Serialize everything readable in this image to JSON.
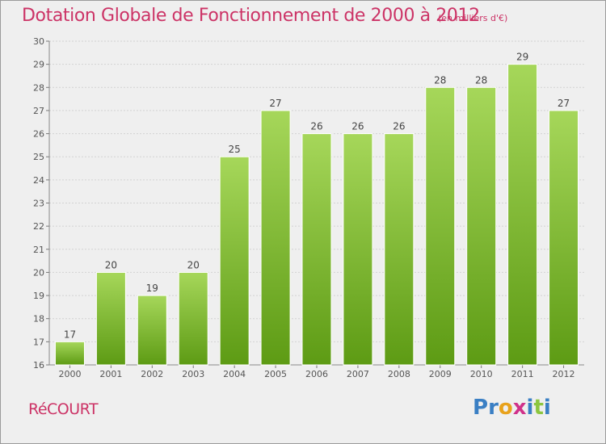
{
  "header": {
    "title": "Dotation Globale de Fonctionnement de 2000 à 2012",
    "unit": "(en milliers d'€)"
  },
  "footer": {
    "commune": "RéCOURT",
    "brand_letters": [
      {
        "char": "P",
        "color": "#3a7fc4"
      },
      {
        "char": "r",
        "color": "#3a7fc4"
      },
      {
        "char": "o",
        "color": "#e8a21c"
      },
      {
        "char": "x",
        "color": "#d0318a"
      },
      {
        "char": "i",
        "color": "#3a7fc4"
      },
      {
        "char": "t",
        "color": "#8cc63f"
      },
      {
        "char": "i",
        "color": "#3a7fc4"
      }
    ]
  },
  "colors": {
    "bar_light": "#a6d75a",
    "bar_dark": "#5d9b14",
    "accent": "#cc3366"
  },
  "chart_data": {
    "type": "bar",
    "title": "Dotation Globale de Fonctionnement de 2000 à 2012",
    "subtitle": "(en milliers d'€)",
    "categories": [
      "2000",
      "2001",
      "2002",
      "2003",
      "2004",
      "2005",
      "2006",
      "2007",
      "2008",
      "2009",
      "2010",
      "2011",
      "2012"
    ],
    "values": [
      17,
      20,
      19,
      20,
      25,
      27,
      26,
      26,
      26,
      28,
      28,
      29,
      27
    ],
    "ylim": [
      16,
      30
    ],
    "yticks": [
      16,
      17,
      18,
      19,
      20,
      21,
      22,
      23,
      24,
      25,
      26,
      27,
      28,
      29,
      30
    ],
    "grid": "horizontal"
  }
}
